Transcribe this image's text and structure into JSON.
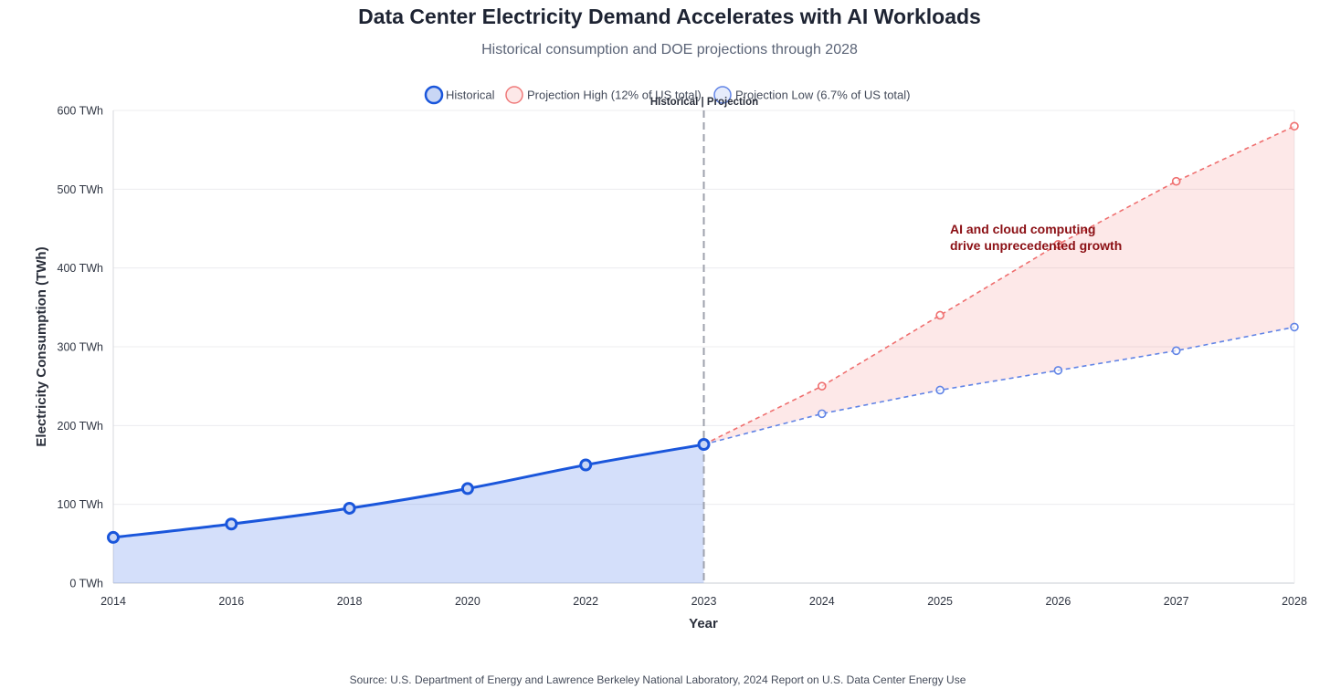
{
  "chart_data": {
    "type": "line",
    "title": "Data Center Electricity Demand Accelerates with AI Workloads",
    "subtitle": "Historical consumption and DOE projections through 2028",
    "xlabel": "Year",
    "ylabel": "Electricity Consumption (TWh)",
    "categories": [
      "2014",
      "2016",
      "2018",
      "2020",
      "2022",
      "2023",
      "2024",
      "2025",
      "2026",
      "2027",
      "2028"
    ],
    "y_ticks": [
      "0 TWh",
      "100 TWh",
      "200 TWh",
      "300 TWh",
      "400 TWh",
      "500 TWh",
      "600 TWh"
    ],
    "ylim": [
      0,
      600
    ],
    "grid": true,
    "legend_position": "top",
    "series": [
      {
        "name": "Historical",
        "color": "#1a56db",
        "fill": "rgba(59,110,230,0.22)",
        "style": "solid",
        "points": [
          [
            "2014",
            58
          ],
          [
            "2016",
            75
          ],
          [
            "2018",
            95
          ],
          [
            "2020",
            120
          ],
          [
            "2022",
            150
          ],
          [
            "2023",
            176
          ]
        ]
      },
      {
        "name": "Projection High (12% of US total)",
        "color": "#ef6f6f",
        "style": "dashed",
        "points": [
          [
            "2023",
            176
          ],
          [
            "2024",
            250
          ],
          [
            "2025",
            340
          ],
          [
            "2026",
            430
          ],
          [
            "2027",
            510
          ],
          [
            "2028",
            580
          ]
        ]
      },
      {
        "name": "Projection Low (6.7% of US total)",
        "color": "#6184e6",
        "style": "dashed",
        "points": [
          [
            "2023",
            176
          ],
          [
            "2024",
            215
          ],
          [
            "2025",
            245
          ],
          [
            "2026",
            270
          ],
          [
            "2027",
            295
          ],
          [
            "2028",
            325
          ]
        ]
      }
    ],
    "divider": {
      "at": "2023",
      "label": "Historical | Projection"
    },
    "annotation": {
      "lines": [
        "AI and cloud computing",
        "drive unprecedented growth"
      ]
    },
    "source": "Source: U.S. Department of Energy and Lawrence Berkeley National Laboratory, 2024 Report on U.S. Data Center Energy Use"
  }
}
